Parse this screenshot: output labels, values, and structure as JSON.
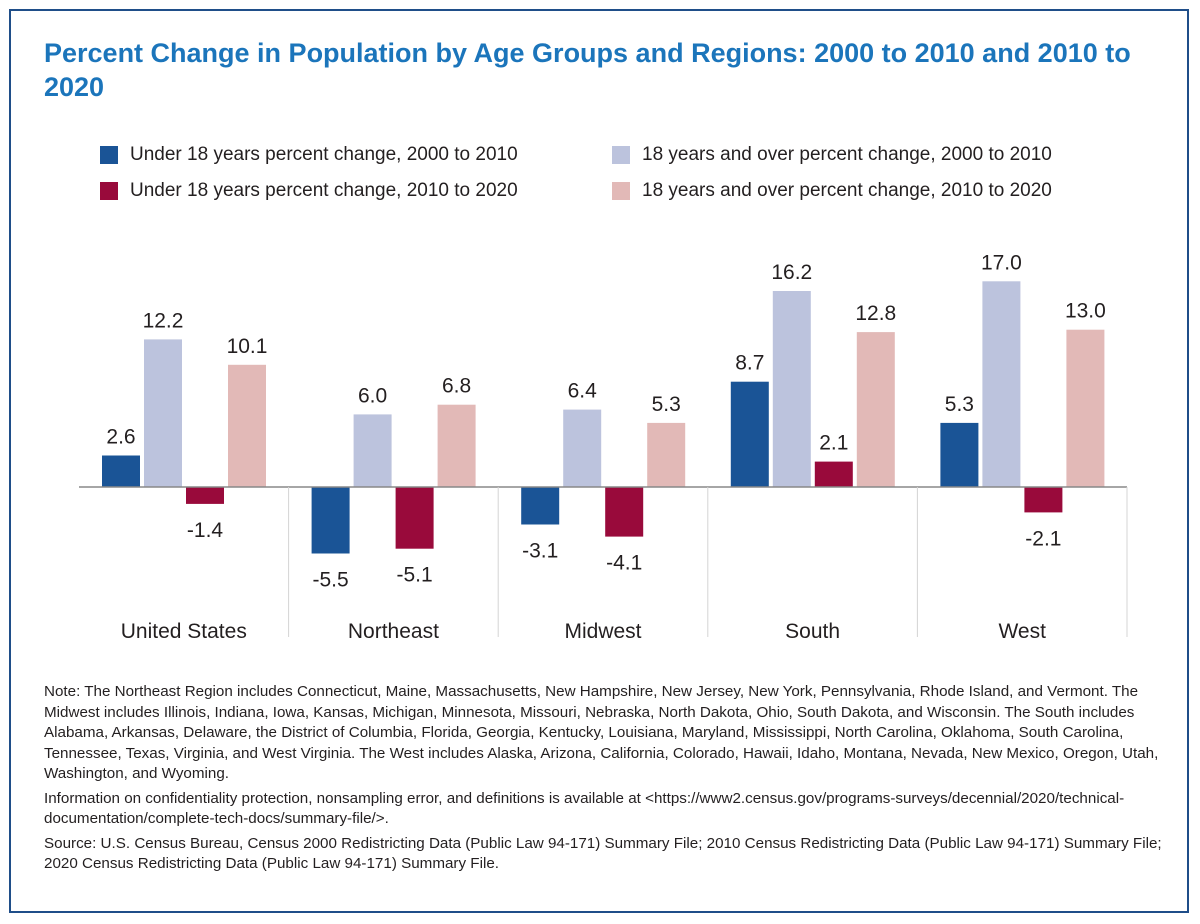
{
  "title": "Percent Change in Population by Age Groups and Regions: 2000 to 2010 and 2010 to 2020",
  "legend": [
    {
      "label": "Under 18 years percent change, 2000 to 2010",
      "color": "#1a5496"
    },
    {
      "label": "18 years and over percent change, 2000 to 2010",
      "color": "#bcc3dd"
    },
    {
      "label": "Under 18 years percent change, 2010 to 2020",
      "color": "#990a3b"
    },
    {
      "label": "18 years and over percent change, 2010 to 2020",
      "color": "#e2b9b7"
    }
  ],
  "chart_data": {
    "type": "bar",
    "categories": [
      "United States",
      "Northeast",
      "Midwest",
      "South",
      "West"
    ],
    "series": [
      {
        "name": "Under 18 years percent change, 2000 to 2010",
        "values": [
          2.6,
          -5.5,
          -3.1,
          8.7,
          5.3
        ]
      },
      {
        "name": "18 years and over percent change, 2000 to 2010",
        "values": [
          12.2,
          6.0,
          6.4,
          16.2,
          17.0
        ]
      },
      {
        "name": "Under 18 years percent change, 2010 to 2020",
        "values": [
          -1.4,
          -5.1,
          -4.1,
          2.1,
          -2.1
        ]
      },
      {
        "name": "18 years and over percent change, 2010 to 2020",
        "values": [
          10.1,
          6.8,
          5.3,
          12.8,
          13.0
        ]
      }
    ],
    "data_labels": [
      [
        "2.6",
        "-5.5",
        "-3.1",
        "8.7",
        "5.3"
      ],
      [
        "12.2",
        "6.0",
        "6.4",
        "16.2",
        "17.0"
      ],
      [
        "-1.4",
        "-5.1",
        "-4.1",
        "2.1",
        "-2.1"
      ],
      [
        "10.1",
        "6.8",
        "5.3",
        "12.8",
        "13.0"
      ]
    ],
    "colors": [
      "#1a5496",
      "#bcc3dd",
      "#990a3b",
      "#e2b9b7"
    ],
    "ylim": [
      -8,
      18
    ],
    "grid": false,
    "legend_position": "top"
  },
  "notes": {
    "note": "Note: The Northeast Region includes Connecticut, Maine, Massachusetts, New Hampshire, New Jersey, New York, Pennsylvania, Rhode Island, and Vermont. The Midwest includes Illinois, Indiana, Iowa, Kansas, Michigan, Minnesota, Missouri, Nebraska, North Dakota, Ohio, South Dakota, and Wisconsin. The South includes Alabama, Arkansas, Delaware, the District of Columbia, Florida, Georgia, Kentucky, Louisiana, Maryland, Mississippi, North Carolina, Oklahoma, South Carolina, Tennessee, Texas, Virginia, and West Virginia. The West includes Alaska, Arizona, California, Colorado, Hawaii, Idaho, Montana, Nevada, New Mexico, Oregon, Utah, Washington, and Wyoming.",
    "info": "Information on confidentiality protection, nonsampling error, and definitions is available at <https://www2.census.gov/programs-surveys/decennial/2020/technical-documentation/complete-tech-docs/summary-file/>.",
    "source": "Source: U.S. Census Bureau, Census 2000 Redistricting Data (Public Law 94-171) Summary File; 2010 Census Redistricting Data (Public Law 94-171) Summary File; 2020 Census Redistricting Data (Public Law 94-171) Summary File."
  }
}
